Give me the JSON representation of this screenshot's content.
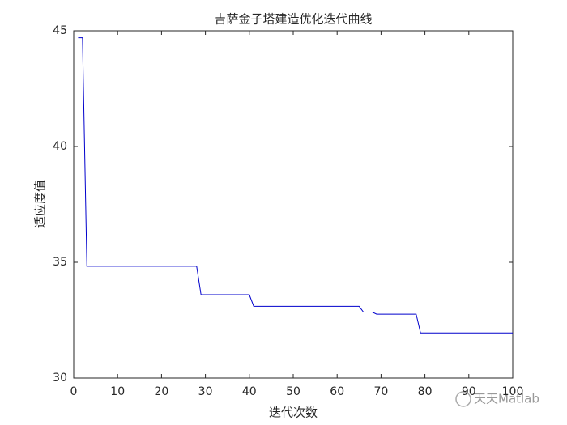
{
  "chart_data": {
    "type": "line",
    "title": "吉萨金子塔建造优化迭代曲线",
    "x_label": "迭代次数",
    "y_label": "适应度值",
    "watermark": "天天Matlab",
    "x": [
      1,
      2,
      3,
      4,
      5,
      6,
      7,
      8,
      9,
      10,
      11,
      12,
      13,
      14,
      15,
      16,
      17,
      18,
      19,
      20,
      21,
      22,
      23,
      24,
      25,
      26,
      27,
      28,
      29,
      30,
      31,
      32,
      33,
      34,
      35,
      36,
      37,
      38,
      39,
      40,
      41,
      42,
      43,
      44,
      45,
      46,
      47,
      48,
      49,
      50,
      51,
      52,
      53,
      54,
      55,
      56,
      57,
      58,
      59,
      60,
      61,
      62,
      63,
      64,
      65,
      66,
      67,
      68,
      69,
      70,
      71,
      72,
      73,
      74,
      75,
      76,
      77,
      78,
      79,
      80,
      81,
      82,
      83,
      84,
      85,
      86,
      87,
      88,
      89,
      90,
      91,
      92,
      93,
      94,
      95,
      96,
      97,
      98,
      99,
      100
    ],
    "values": [
      44.7,
      44.7,
      34.83,
      34.83,
      34.83,
      34.83,
      34.83,
      34.83,
      34.83,
      34.83,
      34.83,
      34.83,
      34.83,
      34.83,
      34.83,
      34.83,
      34.83,
      34.83,
      34.83,
      34.83,
      34.83,
      34.83,
      34.83,
      34.83,
      34.83,
      34.83,
      34.83,
      34.83,
      33.6,
      33.6,
      33.6,
      33.6,
      33.6,
      33.6,
      33.6,
      33.6,
      33.6,
      33.6,
      33.6,
      33.6,
      33.1,
      33.1,
      33.1,
      33.1,
      33.1,
      33.1,
      33.1,
      33.1,
      33.1,
      33.1,
      33.1,
      33.1,
      33.1,
      33.1,
      33.1,
      33.1,
      33.1,
      33.1,
      33.1,
      33.1,
      33.1,
      33.1,
      33.1,
      33.1,
      33.1,
      32.85,
      32.85,
      32.85,
      32.76,
      32.76,
      32.76,
      32.76,
      32.76,
      32.76,
      32.76,
      32.76,
      32.76,
      32.76,
      31.95,
      31.95,
      31.95,
      31.95,
      31.95,
      31.95,
      31.95,
      31.95,
      31.95,
      31.95,
      31.95,
      31.95,
      31.95,
      31.95,
      31.95,
      31.95,
      31.95,
      31.95,
      31.95,
      31.95,
      31.95,
      31.95
    ],
    "color": "#0000cc",
    "xlim": [
      0,
      100
    ],
    "xticks": [
      0,
      10,
      20,
      30,
      40,
      50,
      60,
      70,
      80,
      90,
      100
    ],
    "ylim": [
      30,
      45
    ],
    "yticks": [
      30,
      35,
      40,
      45
    ],
    "grid": false
  }
}
